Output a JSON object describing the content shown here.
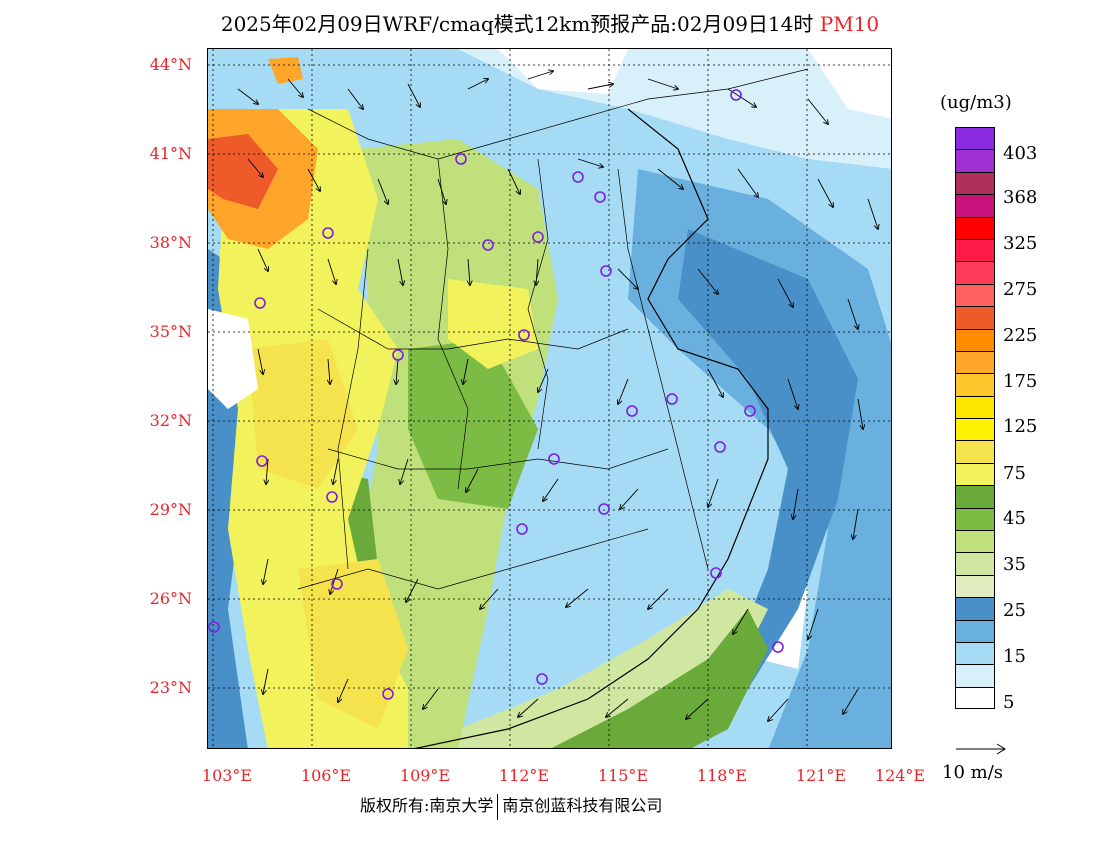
{
  "header": {
    "title_main": "2025年02月09日WRF/cmaq模式12km预报产品:02月09日14时",
    "title_pollutant": "PM10"
  },
  "map": {
    "lat_labels": [
      "44°N",
      "41°N",
      "38°N",
      "35°N",
      "32°N",
      "29°N",
      "26°N",
      "23°N"
    ],
    "lon_labels": [
      "103°E",
      "106°E",
      "109°E",
      "112°E",
      "115°E",
      "118°E",
      "121°E",
      "124°E"
    ],
    "lon_range": [
      103,
      124
    ],
    "lat_range": [
      21,
      44.5
    ],
    "concentration_legend": {
      "unit": "(ug/m3)",
      "levels": [
        "403",
        "368",
        "325",
        "275",
        "225",
        "175",
        "125",
        "75",
        "45",
        "35",
        "25",
        "15",
        "5"
      ],
      "colors": [
        "#8a2be2",
        "#9e2fd1",
        "#b0305c",
        "#c8137a",
        "#ff0000",
        "#ff1a4a",
        "#ff3c5a",
        "#ff6060",
        "#ee5a2a",
        "#ff8c00",
        "#ffa52a",
        "#ffc72c",
        "#ffe600",
        "#fff200",
        "#f5e34e",
        "#f2f25c",
        "#6aaa3a",
        "#7cbc44",
        "#bfe07a",
        "#cfe7a0",
        "#e0ecbe",
        "#4a90c8",
        "#6ab0de",
        "#a6dbf5",
        "#d8f0fa",
        "#ffffff"
      ]
    },
    "wind_reference": {
      "label": "10 m/s"
    },
    "station_count": 26
  },
  "footer": {
    "copyright_left": "版权所有:南京大学",
    "copyright_right": "南京创蓝科技有限公司"
  }
}
